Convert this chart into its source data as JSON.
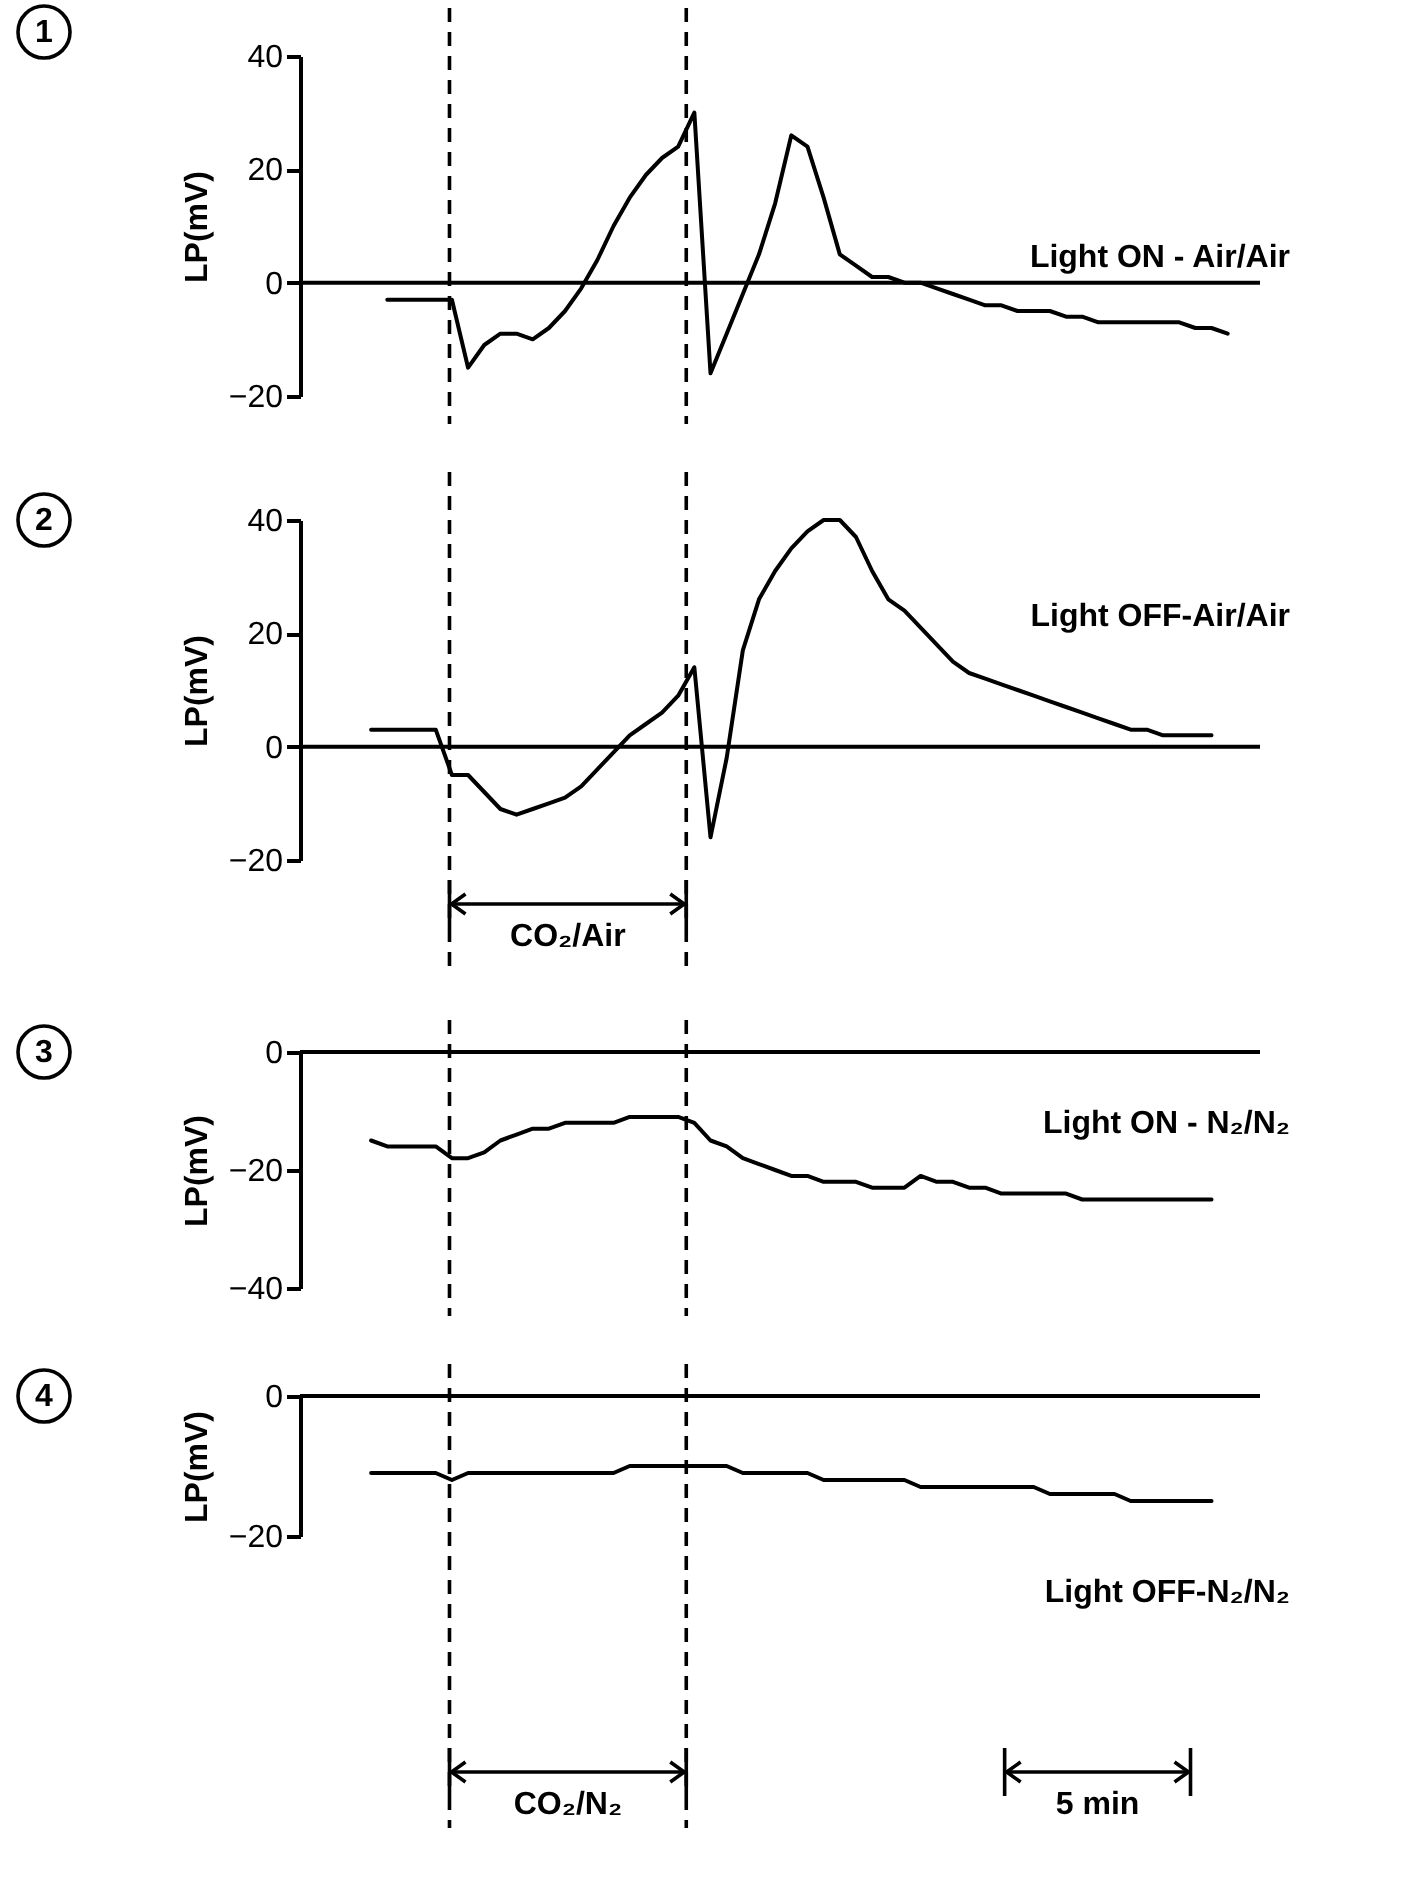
{
  "chart_data": [
    {
      "type": "line",
      "title": "1",
      "ylabel": "LP(mV)",
      "ylim": [
        -20,
        40
      ],
      "yticks": [
        -20,
        0,
        20,
        40
      ],
      "tick_labels": "y",
      "categories": [
        null,
        null,
        null,
        null,
        null,
        null,
        null,
        null,
        null,
        null,
        null,
        null,
        null,
        null,
        null,
        null,
        null,
        null,
        null,
        null,
        null,
        null,
        null,
        null,
        null,
        null,
        null,
        null,
        null,
        null,
        null,
        null,
        null,
        null,
        null,
        null,
        null,
        null,
        null,
        null,
        null,
        null,
        null,
        null,
        null,
        null,
        null,
        null,
        null,
        null,
        null,
        null,
        null,
        null
      ],
      "series": [
        {
          "color": "#000000",
          "values": [
            null,
            -3,
            -3,
            -3,
            -3,
            -3,
            -15,
            -11,
            -9,
            -9,
            -10,
            -8,
            -5,
            -1,
            4,
            10,
            15,
            19,
            22,
            24,
            30,
            -16,
            -9,
            -2,
            5,
            14,
            26,
            24,
            15,
            5,
            3,
            1,
            1,
            0,
            0,
            -1,
            -2,
            -3,
            -4,
            -4,
            -5,
            -5,
            -5,
            -6,
            -6,
            -7,
            -7,
            -7,
            -7,
            -7,
            -7,
            -8,
            -8,
            -9
          ]
        }
      ],
      "ref_lines": [
        {
          "axis": "y",
          "value": 0
        }
      ],
      "annotations": [
        "Light ON - Air/Air"
      ]
    },
    {
      "type": "line",
      "title": "2",
      "ylabel": "LP(mV)",
      "ylim": [
        -20,
        40
      ],
      "yticks": [
        -20,
        0,
        20,
        40
      ],
      "tick_labels": "y",
      "categories": [
        null,
        null,
        null,
        null,
        null,
        null,
        null,
        null,
        null,
        null,
        null,
        null,
        null,
        null,
        null,
        null,
        null,
        null,
        null,
        null,
        null,
        null,
        null,
        null,
        null,
        null,
        null,
        null,
        null,
        null,
        null,
        null,
        null,
        null,
        null,
        null,
        null,
        null,
        null,
        null,
        null,
        null,
        null,
        null,
        null,
        null,
        null,
        null,
        null,
        null,
        null,
        null,
        null,
        null
      ],
      "series": [
        {
          "color": "#000000",
          "values": [
            3,
            3,
            3,
            3,
            3,
            -5,
            -5,
            -8,
            -11,
            -12,
            -11,
            -10,
            -9,
            -7,
            -4,
            -1,
            2,
            4,
            6,
            9,
            14,
            -16,
            -2,
            17,
            26,
            31,
            35,
            38,
            40,
            40,
            37,
            31,
            26,
            24,
            21,
            18,
            15,
            13,
            12,
            11,
            10,
            9,
            8,
            7,
            6,
            5,
            4,
            3,
            3,
            2,
            2,
            2,
            2,
            null
          ]
        }
      ],
      "ref_lines": [
        {
          "axis": "y",
          "value": 0
        }
      ],
      "annotations": [
        "Light OFF-Air/Air",
        "CO₂/Air"
      ]
    },
    {
      "type": "line",
      "title": "3",
      "ylabel": "LP(mV)",
      "ylim": [
        -40,
        0
      ],
      "yticks": [
        -40,
        -20,
        0
      ],
      "tick_labels": "y",
      "categories": [
        null,
        null,
        null,
        null,
        null,
        null,
        null,
        null,
        null,
        null,
        null,
        null,
        null,
        null,
        null,
        null,
        null,
        null,
        null,
        null,
        null,
        null,
        null,
        null,
        null,
        null,
        null,
        null,
        null,
        null,
        null,
        null,
        null,
        null,
        null,
        null,
        null,
        null,
        null,
        null,
        null,
        null,
        null,
        null,
        null,
        null,
        null,
        null,
        null,
        null,
        null,
        null,
        null,
        null
      ],
      "series": [
        {
          "color": "#000000",
          "values": [
            -15,
            -16,
            -16,
            -16,
            -16,
            -18,
            -18,
            -17,
            -15,
            -14,
            -13,
            -13,
            -12,
            -12,
            -12,
            -12,
            -11,
            -11,
            -11,
            -11,
            -12,
            -15,
            -16,
            -18,
            -19,
            -20,
            -21,
            -21,
            -22,
            -22,
            -22,
            -23,
            -23,
            -23,
            -21,
            -22,
            -22,
            -23,
            -23,
            -24,
            -24,
            -24,
            -24,
            -24,
            -25,
            -25,
            -25,
            -25,
            -25,
            -25,
            -25,
            -25,
            -25,
            null
          ]
        }
      ],
      "ref_lines": [
        {
          "axis": "y",
          "value": 0
        }
      ],
      "annotations": [
        "Light ON - N₂/N₂"
      ]
    },
    {
      "type": "line",
      "title": "4",
      "ylabel": "LP(mV)",
      "ylim": [
        -20,
        0
      ],
      "yticks": [
        -20,
        0
      ],
      "tick_labels": "y",
      "categories": [
        null,
        null,
        null,
        null,
        null,
        null,
        null,
        null,
        null,
        null,
        null,
        null,
        null,
        null,
        null,
        null,
        null,
        null,
        null,
        null,
        null,
        null,
        null,
        null,
        null,
        null,
        null,
        null,
        null,
        null,
        null,
        null,
        null,
        null,
        null,
        null,
        null,
        null,
        null,
        null,
        null,
        null,
        null,
        null,
        null,
        null,
        null,
        null,
        null,
        null,
        null,
        null,
        null,
        null
      ],
      "series": [
        {
          "color": "#000000",
          "values": [
            -11,
            -11,
            -11,
            -11,
            -11,
            -12,
            -11,
            -11,
            -11,
            -11,
            -11,
            -11,
            -11,
            -11,
            -11,
            -11,
            -10,
            -10,
            -10,
            -10,
            -10,
            -10,
            -10,
            -11,
            -11,
            -11,
            -11,
            -11,
            -12,
            -12,
            -12,
            -12,
            -12,
            -12,
            -13,
            -13,
            -13,
            -13,
            -13,
            -13,
            -13,
            -13,
            -14,
            -14,
            -14,
            -14,
            -14,
            -15,
            -15,
            -15,
            -15,
            -15,
            -15,
            null
          ]
        }
      ],
      "ref_lines": [
        {
          "axis": "y",
          "value": 0
        }
      ],
      "annotations": [
        "Light OFF-N₂/N₂",
        "CO₂/N₂",
        "5 min"
      ]
    }
  ]
}
